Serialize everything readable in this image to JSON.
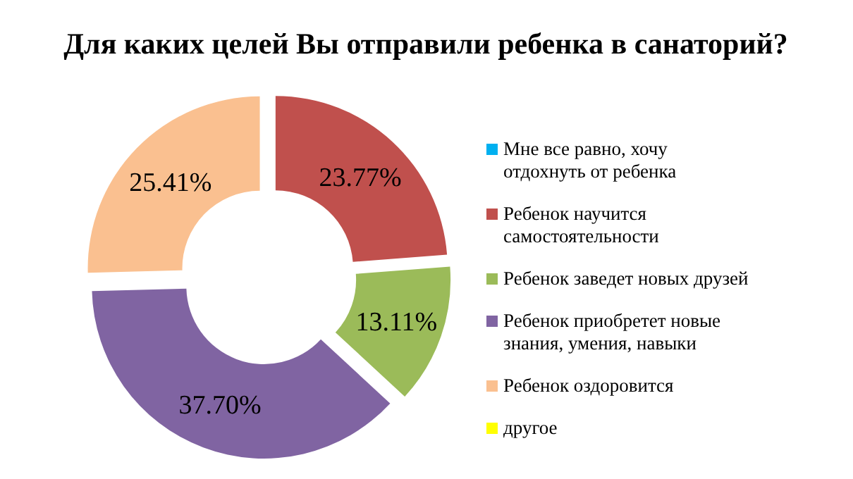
{
  "chart_data": {
    "type": "donut",
    "title": "Для каких целей Вы отправили ребенка в санаторий?",
    "categories": [
      "Мне все равно, хочу отдохнуть от ребенка",
      "Ребенок научится самостоятельности",
      "Ребенок заведет новых друзей",
      "Ребенок приобретет новые знания, умения, навыки",
      "Ребенок оздоровится",
      "другое"
    ],
    "values": [
      0,
      23.77,
      13.11,
      37.7,
      25.41,
      0
    ],
    "colors": [
      "#00b0f0",
      "#c0504d",
      "#9bbb59",
      "#8064a2",
      "#fac090",
      "#ffff00"
    ],
    "value_labels": [
      null,
      "23.77%",
      "13.11%",
      "37.70%",
      "25.41%",
      null
    ],
    "legend": "right"
  }
}
